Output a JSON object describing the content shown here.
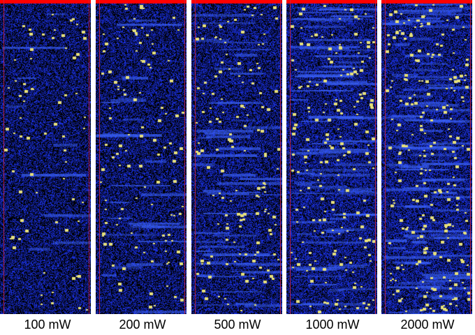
{
  "colors": {
    "background": "#000000",
    "noise": "#1a2ecc",
    "noise_bright": "#2a40ff",
    "signal_dot": "#e6e07a",
    "top_bar": "#ff0000",
    "edge_line": "#cc2244"
  },
  "panels": [
    {
      "label": "100 mW",
      "power_mw": 100,
      "dot_count": 70,
      "noise_density": 0.5,
      "streaks": 10
    },
    {
      "label": "200 mW",
      "power_mw": 200,
      "dot_count": 110,
      "noise_density": 0.52,
      "streaks": 25
    },
    {
      "label": "500 mW",
      "power_mw": 500,
      "dot_count": 140,
      "noise_density": 0.55,
      "streaks": 45
    },
    {
      "label": "1000 mW",
      "power_mw": 1000,
      "dot_count": 180,
      "noise_density": 0.6,
      "streaks": 70
    },
    {
      "label": "2000 mW",
      "power_mw": 2000,
      "dot_count": 230,
      "noise_density": 0.62,
      "streaks": 90
    }
  ]
}
